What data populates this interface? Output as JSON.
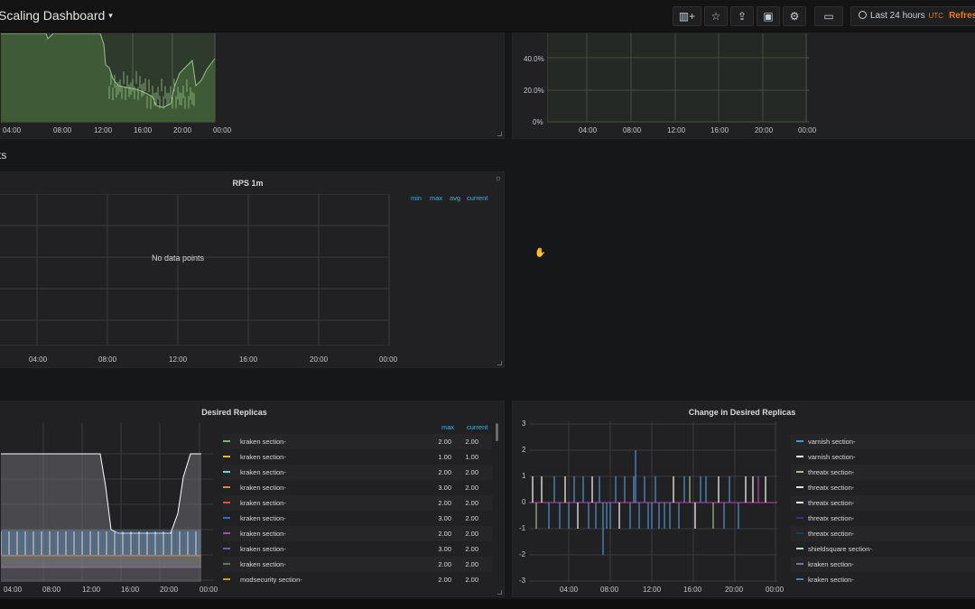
{
  "topbar": {
    "title": "Scaling Dashboard",
    "caret": "▾",
    "buttons": [
      {
        "name": "add-panel-icon",
        "glyph": "▥+"
      },
      {
        "name": "star-icon",
        "glyph": "☆"
      },
      {
        "name": "share-icon",
        "glyph": "⇪"
      },
      {
        "name": "save-icon",
        "glyph": "▣"
      },
      {
        "name": "gear-icon",
        "glyph": "⚙"
      },
      {
        "name": "tv-mode-icon",
        "glyph": "▭"
      }
    ],
    "time_range": "Last 24 hours",
    "timezone": "UTC",
    "refresh": "Refresh e"
  },
  "row_title": "ts",
  "panels": {
    "top_left": {
      "x_ticks": [
        "04:00",
        "08:00",
        "12:00",
        "16:00",
        "20:00",
        "00:00"
      ]
    },
    "top_right": {
      "y_ticks": [
        "40.0%",
        "20.0%",
        "0%"
      ],
      "x_ticks": [
        "04:00",
        "08:00",
        "12:00",
        "16:00",
        "20:00",
        "00:00"
      ]
    },
    "rps": {
      "title": "RPS 1m",
      "no_data": "No data points",
      "legend_headers": [
        "min",
        "max",
        "avg",
        "current"
      ],
      "x_ticks": [
        "04:00",
        "08:00",
        "12:00",
        "16:00",
        "20:00",
        "00:00"
      ]
    },
    "desired": {
      "title": "Desired Replicas",
      "legend_headers": [
        "max",
        "current"
      ],
      "x_ticks": [
        "04:00",
        "08:00",
        "12:00",
        "16:00",
        "20:00",
        "00:00"
      ],
      "legend": [
        {
          "name": "kraken section-",
          "color": "#7eb26d",
          "max": "2.00",
          "current": "2.00"
        },
        {
          "name": "kraken section-",
          "color": "#eab839",
          "max": "1.00",
          "current": "1.00"
        },
        {
          "name": "kraken section-",
          "color": "#6ed0e0",
          "max": "2.00",
          "current": "2.00"
        },
        {
          "name": "kraken section-",
          "color": "#ef843c",
          "max": "3.00",
          "current": "2.00"
        },
        {
          "name": "kraken section-",
          "color": "#e24d42",
          "max": "2.00",
          "current": "2.00"
        },
        {
          "name": "kraken section-",
          "color": "#1f78c1",
          "max": "3.00",
          "current": "2.00"
        },
        {
          "name": "kraken section-",
          "color": "#ba43a9",
          "max": "2.00",
          "current": "2.00"
        },
        {
          "name": "kraken section-",
          "color": "#705da0",
          "max": "3.00",
          "current": "2.00"
        },
        {
          "name": "kraken section-",
          "color": "#508642",
          "max": "2.00",
          "current": "2.00"
        },
        {
          "name": "modsecurity section-",
          "color": "#cca300",
          "max": "2.00",
          "current": "2.00"
        }
      ]
    },
    "change": {
      "title": "Change in Desired Replicas",
      "y_ticks": [
        "3",
        "2",
        "1",
        "0",
        "-1",
        "-2",
        "-3"
      ],
      "x_ticks": [
        "04:00",
        "08:00",
        "12:00",
        "16:00",
        "20:00",
        "00:00"
      ],
      "legend": [
        {
          "name": "varnish section-",
          "color": "#5195ce"
        },
        {
          "name": "varnish section-",
          "color": "#ffffff"
        },
        {
          "name": "threatx section-",
          "color": "#9ac48a"
        },
        {
          "name": "threatx section-",
          "color": "#e0e0e0"
        },
        {
          "name": "threatx section-",
          "color": "#f4f4e0"
        },
        {
          "name": "threatx section-",
          "color": "#3a2f8a"
        },
        {
          "name": "threatx section-",
          "color": "#0a437c"
        },
        {
          "name": "shieldsquare section-",
          "color": "#b7dbab"
        },
        {
          "name": "kraken section-",
          "color": "#806eb7"
        },
        {
          "name": "kraken section-",
          "color": "#447ebc"
        }
      ]
    }
  }
}
